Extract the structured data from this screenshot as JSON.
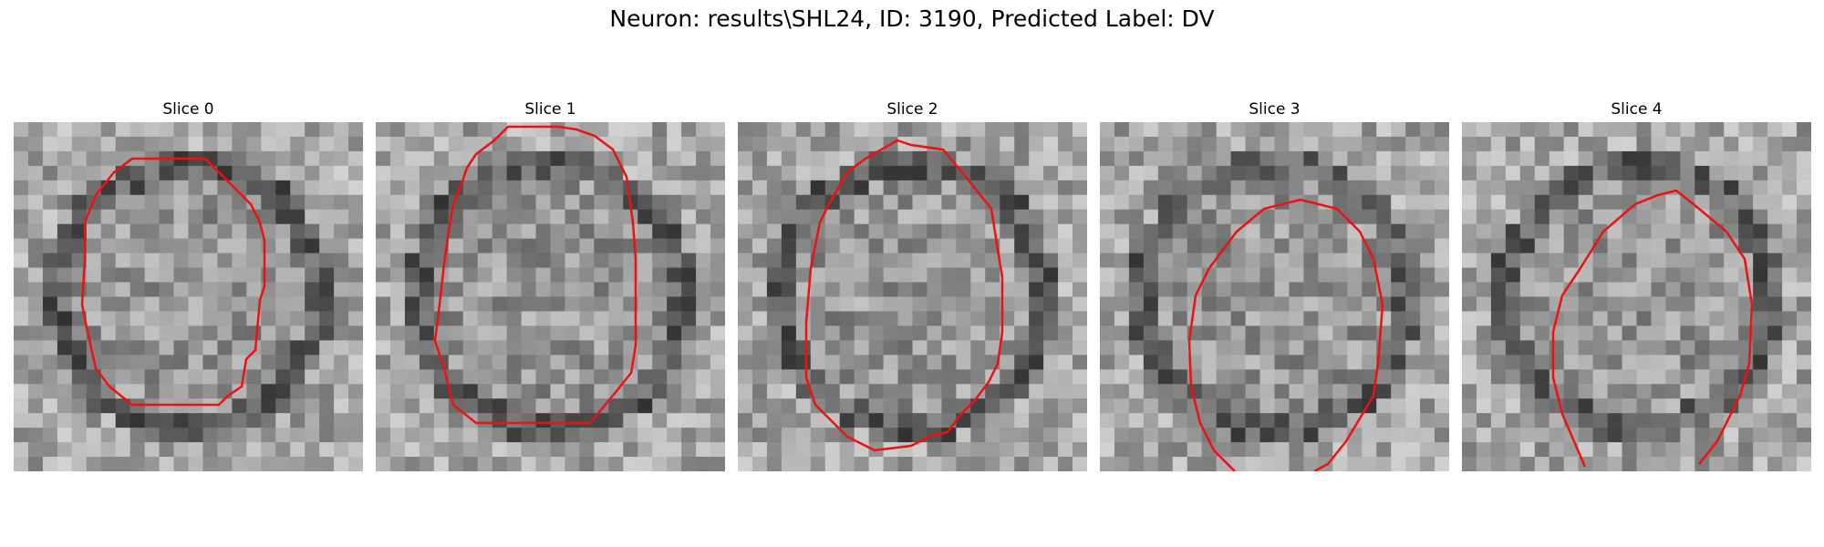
{
  "figure": {
    "title": "Neuron: results\\SHL24, ID: 3190, Predicted Label: DV",
    "contour_color": "#ee1111",
    "panels": [
      {
        "title": "Slice 0"
      },
      {
        "title": "Slice 1"
      },
      {
        "title": "Slice 2"
      },
      {
        "title": "Slice 3"
      },
      {
        "title": "Slice 4"
      }
    ]
  }
}
